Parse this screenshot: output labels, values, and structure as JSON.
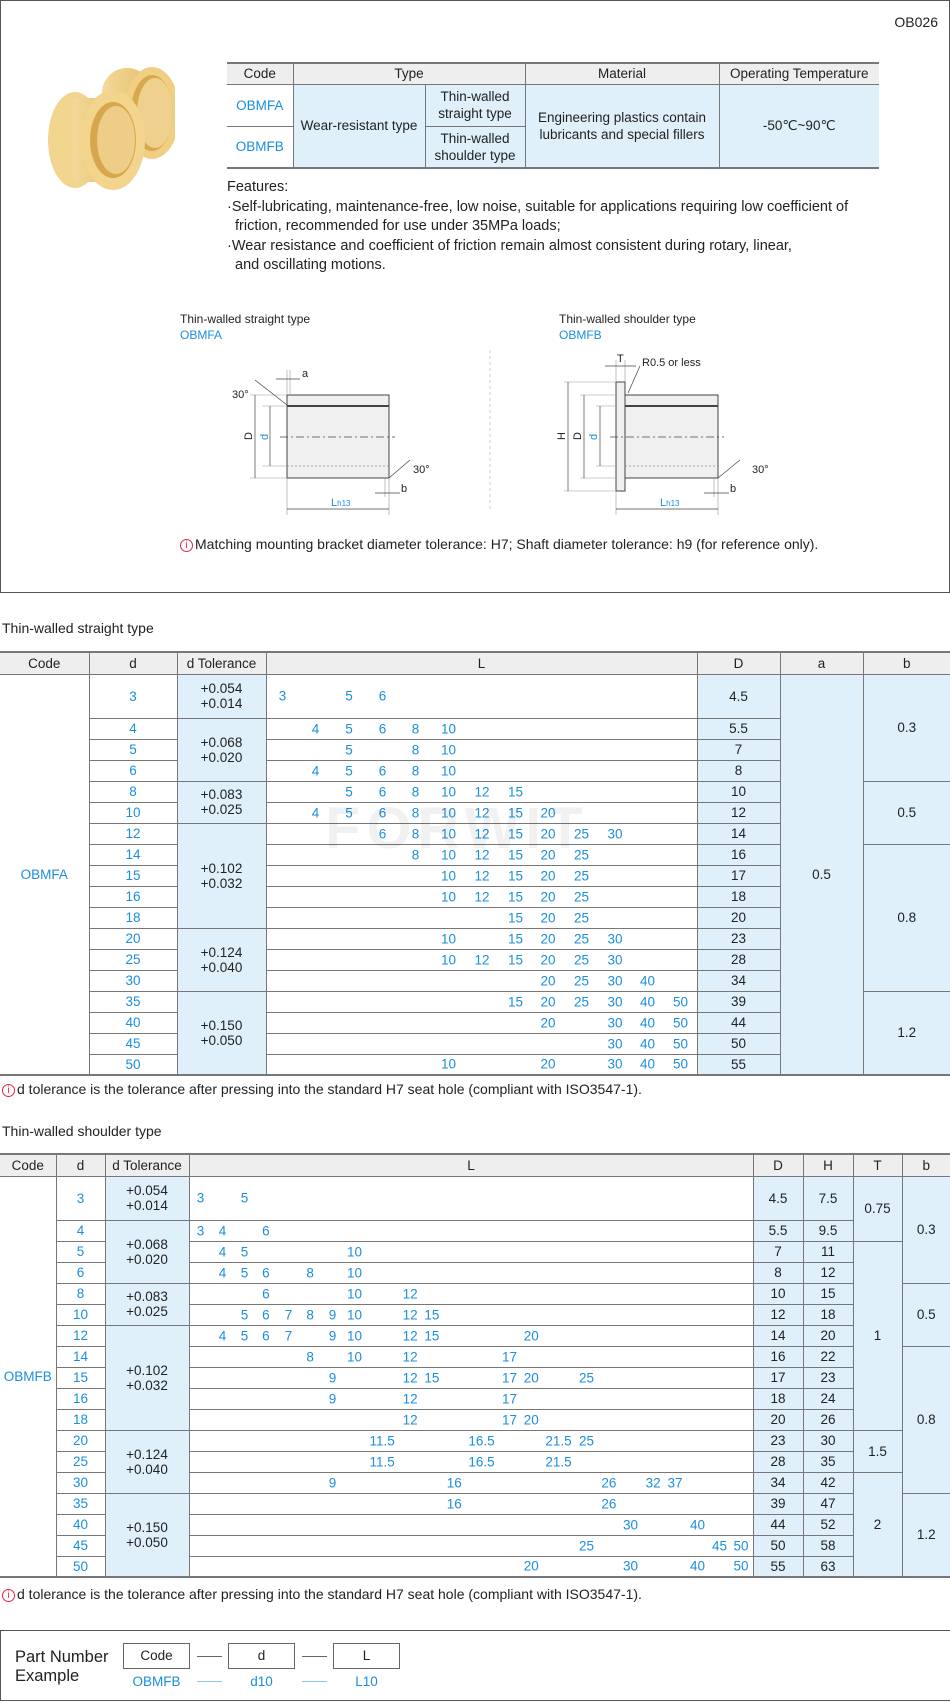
{
  "page_code": "OB026",
  "spec_table": {
    "headers": [
      "Code",
      "Type",
      "Material",
      "Operating Temperature"
    ],
    "type_main": "Wear-resistant type",
    "rows": [
      {
        "code": "OBMFA",
        "subtype": "Thin-walled straight type"
      },
      {
        "code": "OBMFB",
        "subtype": "Thin-walled shoulder type"
      }
    ],
    "material": "Engineering plastics contain lubricants and special fillers",
    "temperature": "-50℃~90℃"
  },
  "features": {
    "title": "Features:",
    "lines": [
      "·Self-lubricating, maintenance-free, low noise, suitable for applications requiring low coefficient of",
      "friction, recommended for use under 35MPa loads;",
      "·Wear resistance and coefficient of friction remain almost consistent during rotary, linear,",
      "and oscillating motions."
    ]
  },
  "diagrams": {
    "left": {
      "title": "Thin-walled straight type",
      "code": "OBMFA"
    },
    "right": {
      "title": "Thin-walled shoulder type",
      "code": "OBMFB"
    },
    "labels": {
      "a": "a",
      "b": "b",
      "D": "D",
      "d": "d",
      "H": "H",
      "T": "T",
      "L": "L",
      "L_sub": "h13",
      "angle": "30°",
      "radius": "R0.5 or less"
    }
  },
  "mount_note": "Matching mounting bracket diameter tolerance: H7; Shaft diameter tolerance: h9 (for reference only).",
  "watermark": "FORWIT",
  "straight": {
    "title": "Thin-walled straight type",
    "headers": [
      "Code",
      "d",
      "d Tolerance",
      "L",
      "D",
      "a",
      "b"
    ],
    "code": "OBMFA",
    "a": "0.5",
    "tolerances": [
      {
        "span": 1,
        "upper": "+0.054",
        "lower": "+0.014"
      },
      {
        "span": 3,
        "upper": "+0.068",
        "lower": "+0.020"
      },
      {
        "span": 2,
        "upper": "+0.083",
        "lower": "+0.025"
      },
      {
        "span": 5,
        "upper": "+0.102",
        "lower": "+0.032"
      },
      {
        "span": 3,
        "upper": "+0.124",
        "lower": "+0.040"
      },
      {
        "span": 4,
        "upper": "+0.150",
        "lower": "+0.050"
      }
    ],
    "b_groups": [
      {
        "span": 4,
        "value": "0.3"
      },
      {
        "span": 3,
        "value": "0.5"
      },
      {
        "span": 7,
        "value": "0.8"
      },
      {
        "span": 4,
        "value": "1.2"
      }
    ],
    "rows": [
      {
        "d": "3",
        "L": [
          "3",
          "5",
          "6"
        ],
        "D": "4.5"
      },
      {
        "d": "4",
        "L": [
          "4",
          "5",
          "6",
          "8",
          "10"
        ],
        "D": "5.5"
      },
      {
        "d": "5",
        "L": [
          "5",
          "8",
          "10"
        ],
        "D": "7"
      },
      {
        "d": "6",
        "L": [
          "4",
          "5",
          "6",
          "8",
          "10"
        ],
        "D": "8"
      },
      {
        "d": "8",
        "L": [
          "5",
          "6",
          "8",
          "10",
          "12",
          "15"
        ],
        "D": "10"
      },
      {
        "d": "10",
        "L": [
          "4",
          "5",
          "6",
          "8",
          "10",
          "12",
          "15",
          "20"
        ],
        "D": "12"
      },
      {
        "d": "12",
        "L": [
          "6",
          "8",
          "10",
          "12",
          "15",
          "20",
          "25",
          "30"
        ],
        "D": "14"
      },
      {
        "d": "14",
        "L": [
          "8",
          "10",
          "12",
          "15",
          "20",
          "25"
        ],
        "D": "16"
      },
      {
        "d": "15",
        "L": [
          "10",
          "12",
          "15",
          "20",
          "25"
        ],
        "D": "17"
      },
      {
        "d": "16",
        "L": [
          "10",
          "12",
          "15",
          "20",
          "25"
        ],
        "D": "18"
      },
      {
        "d": "18",
        "L": [
          "15",
          "20",
          "25"
        ],
        "D": "20"
      },
      {
        "d": "20",
        "L": [
          "10",
          "15",
          "20",
          "25",
          "30"
        ],
        "D": "23"
      },
      {
        "d": "25",
        "L": [
          "10",
          "12",
          "15",
          "20",
          "25",
          "30"
        ],
        "D": "28"
      },
      {
        "d": "30",
        "L": [
          "20",
          "25",
          "30",
          "40"
        ],
        "D": "34"
      },
      {
        "d": "35",
        "L": [
          "15",
          "20",
          "25",
          "30",
          "40",
          "50"
        ],
        "D": "39"
      },
      {
        "d": "40",
        "L": [
          "20",
          "30",
          "40",
          "50"
        ],
        "D": "44"
      },
      {
        "d": "45",
        "L": [
          "30",
          "40",
          "50"
        ],
        "D": "50"
      },
      {
        "d": "50",
        "L": [
          "10",
          "20",
          "30",
          "40",
          "50"
        ],
        "D": "55"
      }
    ],
    "note": "d tolerance is the tolerance after pressing into the standard H7 seat hole (compliant with ISO3547-1)."
  },
  "shoulder": {
    "title": "Thin-walled shoulder type",
    "headers": [
      "Code",
      "d",
      "d Tolerance",
      "L",
      "D",
      "H",
      "T",
      "b"
    ],
    "code": "OBMFB",
    "tolerances": [
      {
        "span": 1,
        "upper": "+0.054",
        "lower": "+0.014"
      },
      {
        "span": 3,
        "upper": "+0.068",
        "lower": "+0.020"
      },
      {
        "span": 2,
        "upper": "+0.083",
        "lower": "+0.025"
      },
      {
        "span": 5,
        "upper": "+0.102",
        "lower": "+0.032"
      },
      {
        "span": 3,
        "upper": "+0.124",
        "lower": "+0.040"
      },
      {
        "span": 4,
        "upper": "+0.150",
        "lower": "+0.050"
      }
    ],
    "t_groups": [
      {
        "span": 2,
        "value": "0.75"
      },
      {
        "span": 9,
        "value": "1"
      },
      {
        "span": 2,
        "value": "1.5"
      },
      {
        "span": 5,
        "value": "2"
      }
    ],
    "b_groups": [
      {
        "span": 4,
        "value": "0.3"
      },
      {
        "span": 3,
        "value": "0.5"
      },
      {
        "span": 7,
        "value": "0.8"
      },
      {
        "span": 4,
        "value": "1.2"
      }
    ],
    "rows": [
      {
        "d": "3",
        "L": [
          "3",
          "5"
        ],
        "D": "4.5",
        "H": "7.5"
      },
      {
        "d": "4",
        "L": [
          "3",
          "4",
          "6"
        ],
        "D": "5.5",
        "H": "9.5"
      },
      {
        "d": "5",
        "L": [
          "4",
          "5",
          "10"
        ],
        "D": "7",
        "H": "11"
      },
      {
        "d": "6",
        "L": [
          "4",
          "5",
          "6",
          "8",
          "10"
        ],
        "D": "8",
        "H": "12"
      },
      {
        "d": "8",
        "L": [
          "6",
          "10",
          "12"
        ],
        "D": "10",
        "H": "15"
      },
      {
        "d": "10",
        "L": [
          "5",
          "6",
          "7",
          "8",
          "9",
          "10",
          "12",
          "15"
        ],
        "D": "12",
        "H": "18"
      },
      {
        "d": "12",
        "L": [
          "4",
          "5",
          "6",
          "7",
          "9",
          "10",
          "12",
          "15",
          "20"
        ],
        "D": "14",
        "H": "20"
      },
      {
        "d": "14",
        "L": [
          "8",
          "10",
          "12",
          "17"
        ],
        "D": "16",
        "H": "22"
      },
      {
        "d": "15",
        "L": [
          "9",
          "12",
          "15",
          "17",
          "20",
          "25"
        ],
        "D": "17",
        "H": "23"
      },
      {
        "d": "16",
        "L": [
          "9",
          "12",
          "17"
        ],
        "D": "18",
        "H": "24"
      },
      {
        "d": "18",
        "L": [
          "12",
          "17",
          "20"
        ],
        "D": "20",
        "H": "26"
      },
      {
        "d": "20",
        "L": [
          "11.5",
          "16.5",
          "21.5",
          "25"
        ],
        "D": "23",
        "H": "30"
      },
      {
        "d": "25",
        "L": [
          "11.5",
          "16.5",
          "21.5"
        ],
        "D": "28",
        "H": "35"
      },
      {
        "d": "30",
        "L": [
          "9",
          "16",
          "26",
          "32",
          "37"
        ],
        "D": "34",
        "H": "42"
      },
      {
        "d": "35",
        "L": [
          "16",
          "26"
        ],
        "D": "39",
        "H": "47"
      },
      {
        "d": "40",
        "L": [
          "30",
          "40"
        ],
        "D": "44",
        "H": "52"
      },
      {
        "d": "45",
        "L": [
          "25",
          "45",
          "50"
        ],
        "D": "50",
        "H": "58"
      },
      {
        "d": "50",
        "L": [
          "20",
          "30",
          "40",
          "50"
        ],
        "D": "55",
        "H": "63"
      }
    ],
    "note": "d tolerance is the tolerance after pressing into the standard H7 seat hole (compliant with ISO3547-1)."
  },
  "part_number": {
    "label_line1": "Part Number",
    "label_line2": "Example",
    "fields": [
      {
        "label": "Code",
        "value": "OBMFB"
      },
      {
        "label": "d",
        "value": "d10"
      },
      {
        "label": "L",
        "value": "L10"
      }
    ]
  },
  "colors": {
    "accent": "#1b8ee0",
    "cell_highlight": "#dff0fb",
    "header_bg": "#eeeeee",
    "info_icon": "#e22244"
  }
}
